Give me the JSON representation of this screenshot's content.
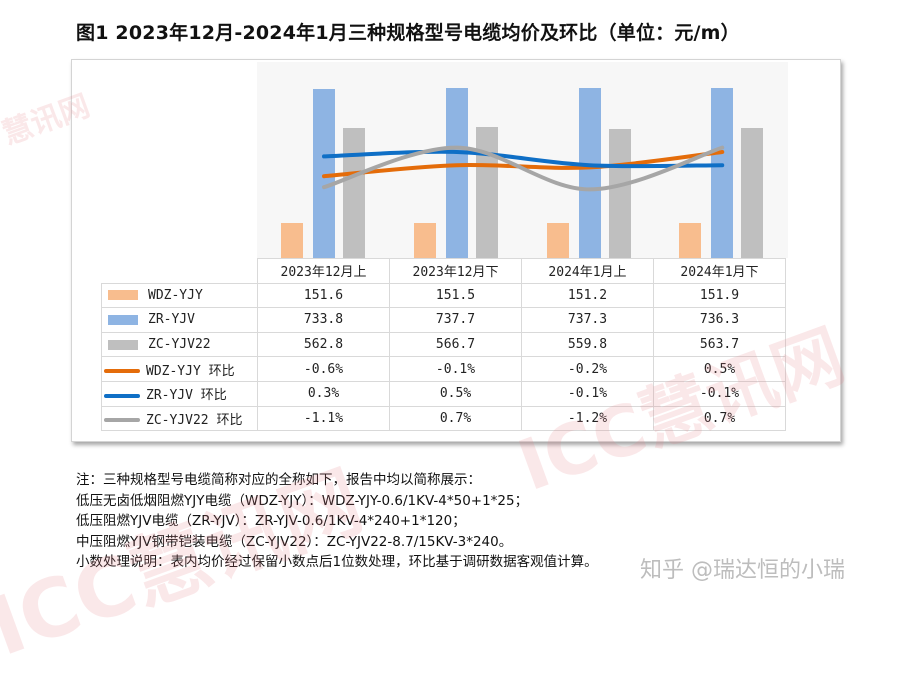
{
  "title": "图1 2023年12月-2024年1月三种规格型号电缆均价及环比（单位：元/m）",
  "chart_data": {
    "type": "bar",
    "combo": "bar + smooth line (secondary axis), with data table below",
    "title": "图1 2023年12月-2024年1月三种规格型号电缆均价及环比（单位：元/m）",
    "categories": [
      "2023年12月上",
      "2023年12月下",
      "2024年1月上",
      "2024年1月下"
    ],
    "series": [
      {
        "name": "WDZ-YJY",
        "type": "bar",
        "color": "#f8bd8e",
        "values": [
          151.6,
          151.5,
          151.2,
          151.9
        ],
        "labels": [
          "151.6",
          "151.5",
          "151.2",
          "151.9"
        ]
      },
      {
        "name": "ZR-YJV",
        "type": "bar",
        "color": "#8eb4e3",
        "values": [
          733.8,
          737.7,
          737.3,
          736.3
        ],
        "labels": [
          "733.8",
          "737.7",
          "737.3",
          "736.3"
        ]
      },
      {
        "name": "ZC-YJV22",
        "type": "bar",
        "color": "#bfbfbf",
        "values": [
          562.8,
          566.7,
          559.8,
          563.7
        ],
        "labels": [
          "562.8",
          "566.7",
          "559.8",
          "563.7"
        ]
      },
      {
        "name": "WDZ-YJY 环比",
        "type": "line",
        "color": "#e46c0a",
        "values": [
          -0.6,
          -0.1,
          -0.2,
          0.5
        ],
        "labels": [
          "-0.6%",
          "-0.1%",
          "-0.2%",
          "0.5%"
        ]
      },
      {
        "name": "ZR-YJV 环比",
        "type": "line",
        "color": "#0f6fc6",
        "values": [
          0.3,
          0.5,
          -0.1,
          -0.1
        ],
        "labels": [
          "0.3%",
          "0.5%",
          "-0.1%",
          "-0.1%"
        ]
      },
      {
        "name": "ZC-YJV22 环比",
        "type": "line",
        "color": "#a6a6a6",
        "values": [
          -1.1,
          0.7,
          -1.2,
          0.7
        ],
        "labels": [
          "-1.1%",
          "0.7%",
          "-1.2%",
          "0.7%"
        ]
      }
    ],
    "xlabel": "",
    "ylabel": "元/m",
    "axes_visible": false,
    "grid": false,
    "legend_position": "data table (left column)"
  },
  "notes": [
    "注：三种规格型号电缆简称对应的全称如下，报告中均以简称展示：",
    "低压无卤低烟阻燃YJY电缆（WDZ-YJY）：WDZ-YJY-0.6/1KV-4*50+1*25；",
    "低压阻燃YJV电缆（ZR-YJV）：ZR-YJV-0.6/1KV-4*240+1*120；",
    "中压阻燃YJV钢带铠装电缆（ZC-YJV22）：ZC-YJV22-8.7/15KV-3*240。",
    "小数处理说明：表内均价经过保留小数点后1位数处理，环比基于调研数据客观值计算。"
  ],
  "watermarks": {
    "brand": "ICC慧讯网",
    "brand_small": "慧讯网",
    "zhihu": "知乎 @瑞达恒的小瑞"
  }
}
